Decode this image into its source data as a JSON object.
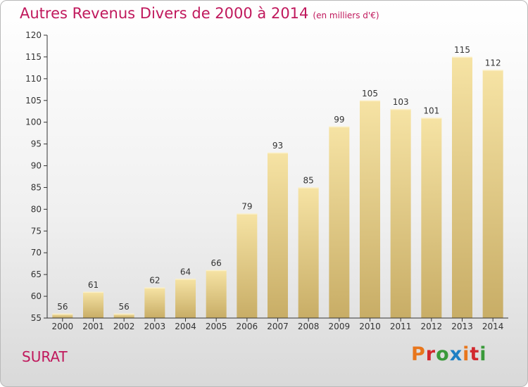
{
  "header": {
    "title": "Autres Revenus Divers de 2000 à 2014",
    "subtitle": "(en milliers d'€)"
  },
  "footer": {
    "commune": "SURAT",
    "logo": {
      "text": "Proxiti",
      "colors": [
        "#e8761c",
        "#d2282e",
        "#3a9a3a",
        "#1d7fc4",
        "#e8761c",
        "#d2282e",
        "#3a9a3a"
      ]
    }
  },
  "colors": {
    "title": "#c0185c",
    "bar_light": "#f6e3a4",
    "bar_dark": "#c8ad66",
    "axis": "#333333"
  },
  "chart_data": {
    "type": "bar",
    "title": "Autres Revenus Divers de 2000 à 2014",
    "subtitle": "(en milliers d'€)",
    "categories": [
      "2000",
      "2001",
      "2002",
      "2003",
      "2004",
      "2005",
      "2006",
      "2007",
      "2008",
      "2009",
      "2010",
      "2011",
      "2012",
      "2013",
      "2014"
    ],
    "values": [
      56,
      61,
      56,
      62,
      64,
      66,
      79,
      93,
      85,
      99,
      105,
      103,
      101,
      115,
      112
    ],
    "value_labels": [
      "56",
      "61",
      "56",
      "62",
      "64",
      "66",
      "79",
      "93",
      "85",
      "99",
      "105",
      "103",
      "101",
      "115",
      "112"
    ],
    "ylim": [
      55,
      120
    ],
    "yticks": [
      "55",
      "60",
      "65",
      "70",
      "75",
      "80",
      "85",
      "90",
      "95",
      "100",
      "105",
      "110",
      "115",
      "120"
    ],
    "xlabel": "",
    "ylabel": "",
    "grid": false,
    "legend": "none"
  }
}
